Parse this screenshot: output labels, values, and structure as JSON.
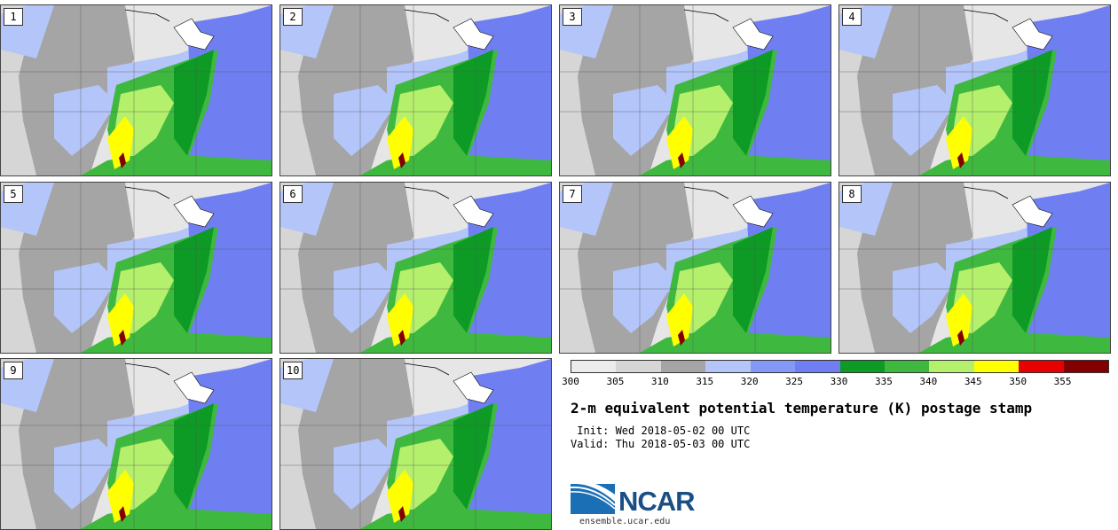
{
  "panels": [
    "1",
    "2",
    "3",
    "4",
    "5",
    "6",
    "7",
    "8",
    "9",
    "10"
  ],
  "colorbar": {
    "colors": [
      "#ececec",
      "#d6d6d6",
      "#a5a5a5",
      "#b4c5fa",
      "#8499f6",
      "#6f7ff2",
      "#0d9b25",
      "#3fb83f",
      "#b5f06c",
      "#ffff00",
      "#e60000",
      "#830000"
    ],
    "tick_labels": [
      "300",
      "305",
      "310",
      "315",
      "320",
      "325",
      "330",
      "335",
      "340",
      "345",
      "350",
      "355"
    ]
  },
  "title": "2-m equivalent potential temperature (K) postage stamp",
  "init": " Init: Wed 2018-05-02 00 UTC",
  "valid": "Valid: Thu 2018-05-03 00 UTC",
  "logo_text": "NCAR",
  "site": "ensemble.ucar.edu"
}
